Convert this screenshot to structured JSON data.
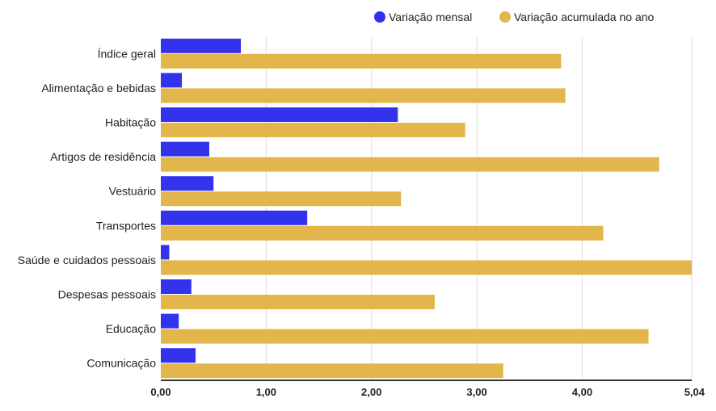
{
  "chart_data": {
    "type": "bar",
    "orientation": "horizontal",
    "categories": [
      "Índice geral",
      "Alimentação e bebidas",
      "Habitação",
      "Artigos de residência",
      "Vestuário",
      "Transportes",
      "Saúde e cuidados pessoais",
      "Despesas pessoais",
      "Educação",
      "Comunicação"
    ],
    "series": [
      {
        "name": "Variação mensal",
        "color": "#3333ee",
        "values": [
          0.76,
          0.2,
          2.25,
          0.46,
          0.5,
          1.39,
          0.08,
          0.29,
          0.17,
          0.33
        ]
      },
      {
        "name": "Variação acumulada no ano",
        "color": "#e2b64a",
        "values": [
          3.8,
          3.84,
          2.89,
          4.73,
          2.28,
          4.2,
          5.04,
          2.6,
          4.63,
          3.25
        ]
      }
    ],
    "xlim": [
      0,
      5.04
    ],
    "x_ticks": [
      "0,00",
      "1,00",
      "2,00",
      "3,00",
      "4,00",
      "5,04"
    ],
    "x_tick_values": [
      0,
      1,
      2,
      3,
      4,
      5.04
    ],
    "legend_position": "top-right",
    "grid": true,
    "title": "",
    "xlabel": "",
    "ylabel": ""
  }
}
